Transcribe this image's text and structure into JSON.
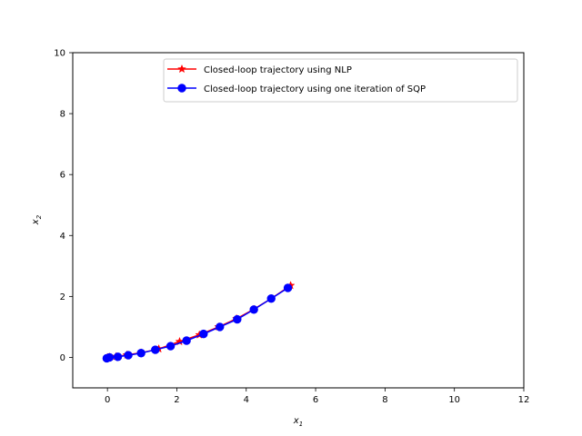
{
  "chart_data": {
    "type": "line",
    "title": "",
    "xlabel": "x",
    "xlabel_sub": "1",
    "ylabel": "x",
    "ylabel_sub": "2",
    "xlim": [
      -1,
      12
    ],
    "ylim": [
      -1,
      10
    ],
    "xticks": [
      0,
      2,
      4,
      6,
      8,
      10,
      12
    ],
    "yticks": [
      0,
      2,
      4,
      6,
      8,
      10
    ],
    "grid": false,
    "legend_position": "top-right",
    "series": [
      {
        "name": "Closed-loop trajectory using NLP",
        "color": "#ff0000",
        "marker": "star",
        "x": [
          0.0,
          0.06,
          0.25,
          0.56,
          0.97,
          1.48,
          2.08,
          2.65,
          3.2,
          3.72,
          4.22,
          4.72,
          5.28
        ],
        "y": [
          0.0,
          0.01,
          0.03,
          0.08,
          0.15,
          0.28,
          0.52,
          0.74,
          1.0,
          1.27,
          1.58,
          1.93,
          2.36
        ]
      },
      {
        "name": "Closed-loop trajectory using one iteration of SQP",
        "color": "#0000ff",
        "marker": "circle",
        "x": [
          -0.02,
          0.06,
          0.3,
          0.6,
          0.97,
          1.38,
          1.82,
          2.28,
          2.77,
          3.24,
          3.74,
          4.22,
          4.72,
          5.2
        ],
        "y": [
          -0.03,
          0.0,
          0.02,
          0.07,
          0.14,
          0.25,
          0.37,
          0.55,
          0.77,
          1.0,
          1.25,
          1.57,
          1.93,
          2.28
        ]
      }
    ]
  }
}
